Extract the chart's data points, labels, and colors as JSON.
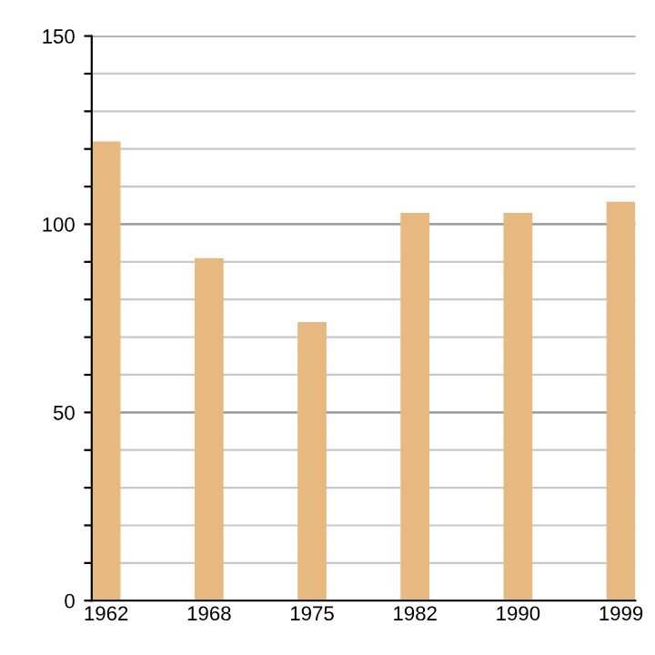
{
  "chart_data": {
    "type": "bar",
    "categories": [
      "1962",
      "1968",
      "1975",
      "1982",
      "1990",
      "1999"
    ],
    "values": [
      122,
      91,
      74,
      103,
      103,
      106
    ],
    "color": "#e5b97f",
    "ylim": [
      0,
      150
    ],
    "yticks": [
      0,
      {
        "value": 10,
        "label": null
      },
      {
        "value": 20,
        "label": null
      },
      {
        "value": 30,
        "label": null
      },
      {
        "value": 40,
        "label": null
      },
      50,
      {
        "value": 60,
        "label": null
      },
      {
        "value": 70,
        "label": null
      },
      {
        "value": 80,
        "label": null
      },
      {
        "value": 90,
        "label": null
      },
      100,
      {
        "value": 110,
        "label": null
      },
      {
        "value": 120,
        "label": null
      },
      {
        "value": 130,
        "label": null
      },
      {
        "value": 140,
        "label": null
      },
      150
    ],
    "grid": "y"
  }
}
